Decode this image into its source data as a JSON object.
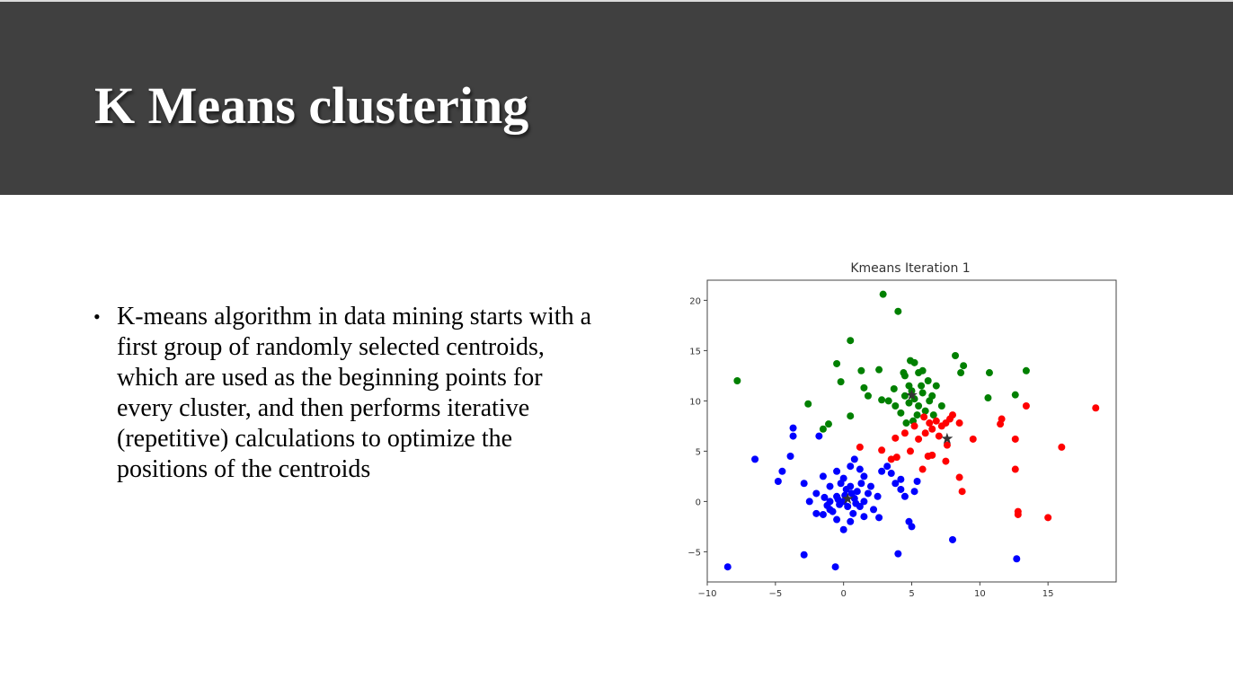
{
  "slide": {
    "title": "K Means clustering",
    "bullets": [
      {
        "text": "K-means algorithm in data mining starts with a first group of randomly selected centroids, which are used as the beginning points for every cluster, and then performs iterative (repetitive) calculations to optimize the positions of the centroids"
      }
    ]
  },
  "chart_data": {
    "type": "scatter",
    "title": "Kmeans Iteration 1",
    "xlabel": "",
    "ylabel": "",
    "xlim": [
      -10,
      20
    ],
    "ylim": [
      -8,
      22
    ],
    "xticks": [
      -10,
      -5,
      0,
      5,
      10,
      15
    ],
    "yticks": [
      -5,
      0,
      5,
      10,
      15,
      20
    ],
    "grid": false,
    "series": [
      {
        "color": "#0000ff",
        "marker": "circle",
        "points": [
          [
            -8.5,
            -6.5
          ],
          [
            -6.5,
            4.2
          ],
          [
            -3.7,
            7.3
          ],
          [
            -3.7,
            6.5
          ],
          [
            -1.8,
            6.5
          ],
          [
            -3.9,
            4.5
          ],
          [
            -4.5,
            3.0
          ],
          [
            -4.8,
            2.0
          ],
          [
            -2.9,
            1.8
          ],
          [
            -2.5,
            0.0
          ],
          [
            -2.0,
            -1.2
          ],
          [
            -1.5,
            -1.3
          ],
          [
            -1.0,
            -0.8
          ],
          [
            -2.0,
            0.8
          ],
          [
            -1.5,
            2.5
          ],
          [
            -1.0,
            1.5
          ],
          [
            -0.5,
            3.0
          ],
          [
            0.0,
            2.3
          ],
          [
            0.5,
            1.5
          ],
          [
            0.5,
            3.5
          ],
          [
            0.8,
            4.2
          ],
          [
            1.2,
            3.2
          ],
          [
            1.5,
            2.5
          ],
          [
            2.0,
            1.5
          ],
          [
            2.5,
            0.5
          ],
          [
            2.6,
            -1.6
          ],
          [
            1.5,
            -1.5
          ],
          [
            0.5,
            -2.0
          ],
          [
            0.0,
            -2.8
          ],
          [
            -0.5,
            -1.8
          ],
          [
            -1.0,
            0.0
          ],
          [
            -0.5,
            0.5
          ],
          [
            0.0,
            0.0
          ],
          [
            0.3,
            -0.5
          ],
          [
            0.8,
            0.3
          ],
          [
            1.2,
            -0.5
          ],
          [
            1.8,
            0.8
          ],
          [
            1.0,
            1.0
          ],
          [
            0.2,
            1.2
          ],
          [
            -0.3,
            -0.3
          ],
          [
            0.6,
            0.8
          ],
          [
            1.5,
            0.0
          ],
          [
            -0.8,
            -1.0
          ],
          [
            2.2,
            -0.8
          ],
          [
            2.8,
            3.0
          ],
          [
            3.2,
            3.5
          ],
          [
            3.5,
            2.8
          ],
          [
            3.8,
            1.8
          ],
          [
            4.2,
            1.2
          ],
          [
            4.2,
            2.2
          ],
          [
            4.5,
            0.5
          ],
          [
            5.2,
            1.0
          ],
          [
            5.4,
            2.0
          ],
          [
            4.8,
            -2.0
          ],
          [
            5.0,
            -2.5
          ],
          [
            4.0,
            -5.2
          ],
          [
            8.0,
            -3.8
          ],
          [
            12.7,
            -5.7
          ],
          [
            -2.9,
            -5.3
          ],
          [
            -0.6,
            -6.5
          ],
          [
            -0.4,
            0.2
          ],
          [
            0.1,
            0.6
          ],
          [
            0.9,
            -0.2
          ],
          [
            -1.4,
            0.4
          ],
          [
            1.3,
            1.8
          ],
          [
            -0.2,
            1.8
          ],
          [
            0.7,
            -1.2
          ],
          [
            -1.2,
            -0.4
          ]
        ]
      },
      {
        "color": "#008000",
        "marker": "circle",
        "points": [
          [
            -7.8,
            12.0
          ],
          [
            2.9,
            20.6
          ],
          [
            4.0,
            18.9
          ],
          [
            0.5,
            16.0
          ],
          [
            -0.5,
            13.7
          ],
          [
            -0.2,
            11.9
          ],
          [
            1.3,
            13.0
          ],
          [
            2.6,
            13.1
          ],
          [
            4.5,
            12.5
          ],
          [
            4.8,
            11.5
          ],
          [
            5.5,
            12.8
          ],
          [
            5.8,
            13.0
          ],
          [
            6.2,
            12.0
          ],
          [
            6.8,
            11.5
          ],
          [
            7.2,
            9.5
          ],
          [
            8.2,
            14.5
          ],
          [
            8.8,
            13.5
          ],
          [
            8.6,
            12.8
          ],
          [
            10.7,
            12.8
          ],
          [
            13.4,
            13.0
          ],
          [
            12.6,
            10.6
          ],
          [
            10.6,
            10.3
          ],
          [
            -2.6,
            9.7
          ],
          [
            -1.5,
            7.2
          ],
          [
            -1.1,
            7.7
          ],
          [
            0.5,
            8.5
          ],
          [
            1.8,
            10.5
          ],
          [
            2.8,
            10.1
          ],
          [
            3.3,
            10.0
          ],
          [
            3.8,
            9.5
          ],
          [
            4.2,
            8.8
          ],
          [
            4.5,
            10.5
          ],
          [
            4.8,
            9.8
          ],
          [
            5.0,
            11.0
          ],
          [
            5.2,
            10.2
          ],
          [
            5.5,
            9.5
          ],
          [
            5.8,
            10.8
          ],
          [
            6.0,
            9.0
          ],
          [
            6.3,
            10.0
          ],
          [
            6.6,
            8.6
          ],
          [
            5.1,
            8.0
          ],
          [
            5.4,
            8.6
          ],
          [
            4.6,
            7.8
          ],
          [
            4.4,
            12.8
          ],
          [
            5.2,
            13.8
          ],
          [
            4.9,
            14.0
          ],
          [
            6.5,
            10.5
          ],
          [
            5.7,
            11.5
          ],
          [
            1.5,
            11.3
          ],
          [
            3.7,
            11.2
          ]
        ]
      },
      {
        "color": "#ff0000",
        "marker": "circle",
        "points": [
          [
            1.2,
            5.4
          ],
          [
            2.8,
            5.1
          ],
          [
            3.5,
            4.2
          ],
          [
            3.8,
            6.3
          ],
          [
            4.5,
            6.8
          ],
          [
            5.2,
            7.5
          ],
          [
            5.5,
            6.2
          ],
          [
            6.0,
            6.8
          ],
          [
            6.5,
            7.2
          ],
          [
            7.0,
            6.5
          ],
          [
            7.5,
            7.8
          ],
          [
            8.0,
            8.6
          ],
          [
            8.5,
            7.8
          ],
          [
            9.5,
            6.2
          ],
          [
            6.2,
            4.5
          ],
          [
            5.8,
            3.2
          ],
          [
            6.5,
            4.6
          ],
          [
            7.5,
            4.0
          ],
          [
            8.5,
            2.4
          ],
          [
            8.7,
            1.0
          ],
          [
            7.8,
            8.2
          ],
          [
            6.8,
            8.0
          ],
          [
            11.6,
            8.2
          ],
          [
            11.5,
            7.7
          ],
          [
            13.4,
            9.5
          ],
          [
            12.6,
            6.2
          ],
          [
            12.6,
            3.2
          ],
          [
            12.8,
            -1.0
          ],
          [
            12.8,
            -1.3
          ],
          [
            15.0,
            -1.6
          ],
          [
            16.0,
            5.4
          ],
          [
            18.5,
            9.3
          ],
          [
            7.2,
            7.5
          ],
          [
            6.3,
            7.8
          ],
          [
            4.9,
            5.0
          ],
          [
            5.9,
            8.4
          ],
          [
            7.6,
            5.6
          ],
          [
            3.9,
            4.4
          ]
        ]
      }
    ],
    "centroids": [
      [
        5.0,
        10.6
      ],
      [
        7.6,
        6.3
      ],
      [
        0.3,
        0.3
      ]
    ],
    "centroid_color": "#000000"
  }
}
